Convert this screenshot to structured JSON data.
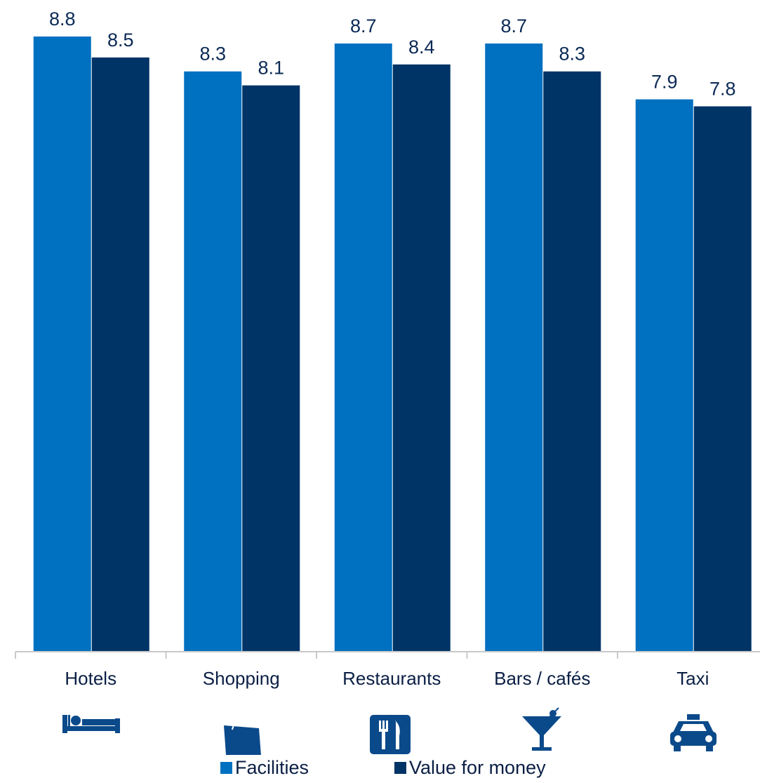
{
  "chart_data": {
    "type": "bar",
    "categories": [
      "Hotels",
      "Shopping",
      "Restaurants",
      "Bars / cafés",
      "Taxi"
    ],
    "category_icons": [
      "bed-icon",
      "shopping-bag-icon",
      "fork-knife-icon",
      "cocktail-glass-icon",
      "taxi-icon"
    ],
    "series": [
      {
        "name": "Facilities",
        "values": [
          8.8,
          8.3,
          8.7,
          8.7,
          7.9
        ],
        "color": "#0070C0"
      },
      {
        "name": "Value for money",
        "values": [
          8.5,
          8.1,
          8.4,
          8.3,
          7.8
        ],
        "color": "#003366"
      }
    ],
    "data_labels": [
      [
        "8.8",
        "8.3",
        "8.7",
        "8.7",
        "7.9"
      ],
      [
        "8.5",
        "8.1",
        "8.4",
        "8.3",
        "7.8"
      ]
    ],
    "ylim": [
      0,
      8.8
    ],
    "grid": false,
    "legend_position": "bottom",
    "title": "",
    "xlabel": "",
    "ylabel": ""
  },
  "legend": {
    "facilities": "Facilities",
    "value_for_money": "Value for money"
  },
  "colors": {
    "icon": "#0b4a8a",
    "axis": "#c8c8c8"
  }
}
